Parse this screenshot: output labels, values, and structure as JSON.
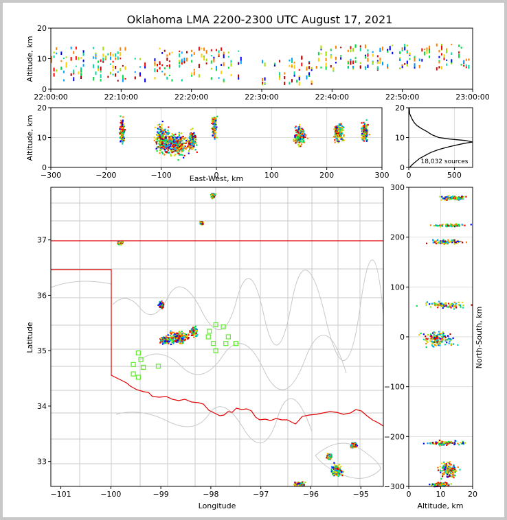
{
  "title": "Oklahoma LMA 2200-2300 UTC August 17, 2021",
  "chart_data": [
    {
      "type": "scatter",
      "name": "altitude-vs-time",
      "ylabel": "Altitude, km",
      "ylim": [
        0,
        20
      ],
      "yticks": [
        "0",
        "10",
        "20"
      ],
      "xticks": [
        "22:00:00",
        "22:10:00",
        "22:20:00",
        "22:30:00",
        "22:40:00",
        "22:50:00",
        "23:00:00"
      ],
      "xlim_minutes": [
        0,
        60
      ],
      "activity_bands": [
        {
          "t0": 0,
          "t1": 27,
          "alt_low": 3,
          "alt_high": 14
        },
        {
          "t0": 30,
          "t1": 38,
          "alt_low": 2,
          "alt_high": 11
        },
        {
          "t0": 38,
          "t1": 60,
          "alt_low": 7,
          "alt_high": 15
        }
      ]
    },
    {
      "type": "scatter",
      "name": "altitude-vs-east-west",
      "xlabel": "East-West, km",
      "ylabel": "Altitude, km",
      "xlim": [
        -300,
        300
      ],
      "ylim": [
        0,
        20
      ],
      "xticks": [
        "−300",
        "−200",
        "−100",
        "0",
        "100",
        "200",
        "300"
      ],
      "yticks": [
        "0",
        "10",
        "20"
      ],
      "clusters": [
        {
          "x": -172,
          "y": 12,
          "sx": 3,
          "sy": 3
        },
        {
          "x": -100,
          "y": 10,
          "sx": 8,
          "sy": 3
        },
        {
          "x": -75,
          "y": 8,
          "sx": 15,
          "sy": 2.5
        },
        {
          "x": -45,
          "y": 9,
          "sx": 5,
          "sy": 2
        },
        {
          "x": -5,
          "y": 14,
          "sx": 3,
          "sy": 3
        },
        {
          "x": 150,
          "y": 11,
          "sx": 7,
          "sy": 2
        },
        {
          "x": 220,
          "y": 12,
          "sx": 6,
          "sy": 2
        },
        {
          "x": 268,
          "y": 12,
          "sx": 4,
          "sy": 2
        }
      ]
    },
    {
      "type": "line",
      "name": "source-altitude-histogram",
      "annotation": "18,032 sources",
      "xlim": [
        0,
        700
      ],
      "ylim": [
        0,
        20
      ],
      "xticks": [
        "0",
        "500"
      ],
      "yticks": [
        "0",
        "10",
        "20"
      ],
      "profile": [
        [
          10,
          0
        ],
        [
          40,
          1
        ],
        [
          80,
          2
        ],
        [
          120,
          3
        ],
        [
          180,
          4
        ],
        [
          240,
          5
        ],
        [
          330,
          6
        ],
        [
          450,
          7
        ],
        [
          600,
          8
        ],
        [
          700,
          8.5
        ],
        [
          620,
          9
        ],
        [
          450,
          9.5
        ],
        [
          330,
          10
        ],
        [
          250,
          11
        ],
        [
          200,
          12
        ],
        [
          140,
          13
        ],
        [
          90,
          14
        ],
        [
          60,
          15
        ],
        [
          40,
          16
        ],
        [
          25,
          17
        ],
        [
          10,
          18
        ],
        [
          5,
          20
        ]
      ]
    },
    {
      "type": "scatter",
      "name": "plan-view-map",
      "xlabel": "Longitude",
      "ylabel": "Latitude",
      "xlim": [
        -101.2,
        -94.55
      ],
      "ylim": [
        32.55,
        37.95
      ],
      "xticks": [
        "−101",
        "−100",
        "−99",
        "−98",
        "−97",
        "−96",
        "−95"
      ],
      "yticks": [
        "33",
        "34",
        "35",
        "36",
        "37"
      ],
      "stations": [
        [
          -97.9,
          35.47
        ],
        [
          -97.75,
          35.43
        ],
        [
          -97.65,
          35.25
        ],
        [
          -97.5,
          35.13
        ],
        [
          -97.7,
          35.13
        ],
        [
          -98.05,
          35.25
        ],
        [
          -98.03,
          35.35
        ],
        [
          -97.95,
          35.13
        ],
        [
          -97.9,
          35.0
        ],
        [
          -99.45,
          34.96
        ],
        [
          -99.4,
          34.84
        ],
        [
          -99.35,
          34.7
        ],
        [
          -99.55,
          34.75
        ],
        [
          -99.55,
          34.58
        ],
        [
          -99.45,
          34.52
        ],
        [
          -99.05,
          34.72
        ]
      ],
      "clusters": [
        {
          "lon": -98.65,
          "lat": 35.25,
          "slon": 0.14,
          "slat": 0.07
        },
        {
          "lon": -98.92,
          "lat": 35.2,
          "slon": 0.07,
          "slat": 0.04
        },
        {
          "lon": -98.35,
          "lat": 35.35,
          "slon": 0.05,
          "slat": 0.06
        },
        {
          "lon": -99.0,
          "lat": 35.83,
          "slon": 0.03,
          "slat": 0.04
        },
        {
          "lon": -97.97,
          "lat": 37.81,
          "slon": 0.03,
          "slat": 0.03
        },
        {
          "lon": -98.2,
          "lat": 37.32,
          "slon": 0.02,
          "slat": 0.02
        },
        {
          "lon": -99.82,
          "lat": 36.96,
          "slon": 0.04,
          "slat": 0.02
        },
        {
          "lon": -95.5,
          "lat": 32.85,
          "slon": 0.07,
          "slat": 0.07
        },
        {
          "lon": -96.25,
          "lat": 32.6,
          "slon": 0.07,
          "slat": 0.03
        },
        {
          "lon": -95.15,
          "lat": 33.3,
          "slon": 0.04,
          "slat": 0.03
        },
        {
          "lon": -95.65,
          "lat": 33.1,
          "slon": 0.03,
          "slat": 0.03
        }
      ]
    },
    {
      "type": "scatter",
      "name": "north-south-vs-altitude",
      "xlabel": "Altitude, km",
      "ylabel": "North-South, km",
      "xlim": [
        0,
        20
      ],
      "ylim": [
        -300,
        300
      ],
      "xticks": [
        "0",
        "10",
        "20"
      ],
      "yticks": [
        "300",
        "200",
        "100",
        "0",
        "−100",
        "−200",
        "−300"
      ],
      "clusters": [
        {
          "alt": 14,
          "ns": 280,
          "salt": 3,
          "sns": 3
        },
        {
          "alt": 13,
          "ns": 225,
          "salt": 4,
          "sns": 2
        },
        {
          "alt": 12,
          "ns": 192,
          "salt": 4,
          "sns": 3
        },
        {
          "alt": 11,
          "ns": 65,
          "salt": 5,
          "sns": 4
        },
        {
          "alt": 9,
          "ns": -3,
          "salt": 3,
          "sns": 10
        },
        {
          "alt": 12,
          "ns": -212,
          "salt": 4,
          "sns": 3
        },
        {
          "alt": 12,
          "ns": -265,
          "salt": 2,
          "sns": 10
        },
        {
          "alt": 10,
          "ns": -295,
          "salt": 2,
          "sns": 3
        }
      ]
    }
  ],
  "colors": {
    "palette": [
      "#0000ff",
      "#00a0ff",
      "#00d8a0",
      "#00e040",
      "#a0e000",
      "#ffd000",
      "#ff8000",
      "#ff0000",
      "#b00000"
    ],
    "state_line": "#e00000",
    "county_line": "#c8c8c8",
    "station": "#66ee33"
  }
}
